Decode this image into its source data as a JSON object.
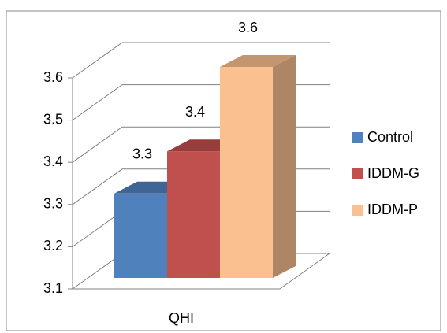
{
  "chart_data": {
    "type": "bar3d",
    "categories": [
      "QHI"
    ],
    "series": [
      {
        "name": "Control",
        "color": "#4f81bd",
        "values": [
          3.3
        ]
      },
      {
        "name": "IDDM-G",
        "color": "#c0504d",
        "values": [
          3.4
        ]
      },
      {
        "name": "IDDM-P",
        "color": "#fac090",
        "values": [
          3.6
        ]
      }
    ],
    "ylim": [
      3.1,
      3.6
    ],
    "yticks": [
      3.1,
      3.2,
      3.3,
      3.4,
      3.5,
      3.6
    ],
    "grid": true,
    "legend": "right"
  }
}
